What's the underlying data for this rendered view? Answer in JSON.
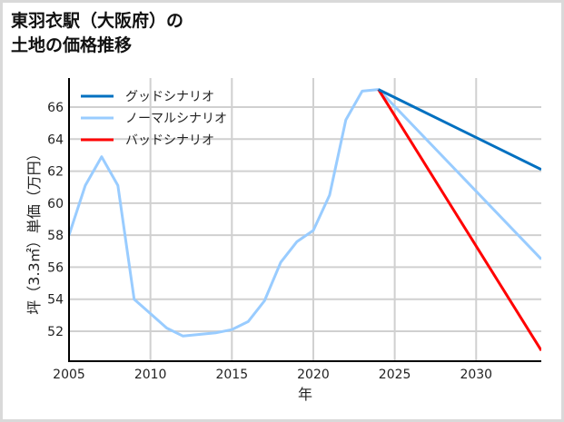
{
  "title": {
    "line1": "東羽衣駅（大阪府）の",
    "line2": "土地の価格推移"
  },
  "colors": {
    "good": "#0070c0",
    "normal": "#99ccff",
    "bad": "#ff0000",
    "grid": "#d0d0d0",
    "axis": "#000000"
  },
  "chart_data": {
    "type": "line",
    "title": "東羽衣駅（大阪府）の土地の価格推移",
    "xlabel": "年",
    "ylabel": "坪（3.3㎡）単価（万円）",
    "xlim": [
      2005,
      2034
    ],
    "ylim": [
      50.2,
      68.0
    ],
    "x_ticks": [
      2005,
      2010,
      2015,
      2020,
      2025,
      2030
    ],
    "y_ticks": [
      52,
      54,
      56,
      58,
      60,
      62,
      64,
      66
    ],
    "grid": true,
    "legend_position": "upper left",
    "series": [
      {
        "name": "グッドシナリオ",
        "color": "#0070c0",
        "x": [
          2024,
          2034
        ],
        "values": [
          67.1,
          62.1
        ]
      },
      {
        "name": "ノーマルシナリオ",
        "color": "#99ccff",
        "x": [
          2005,
          2006,
          2007,
          2008,
          2009,
          2010,
          2011,
          2012,
          2013,
          2014,
          2015,
          2016,
          2017,
          2018,
          2019,
          2020,
          2021,
          2022,
          2023,
          2024,
          2034
        ],
        "values": [
          58.0,
          61.1,
          62.9,
          61.1,
          54.0,
          53.1,
          52.2,
          51.7,
          51.8,
          51.9,
          52.1,
          52.6,
          53.9,
          56.3,
          57.6,
          58.3,
          60.5,
          65.2,
          67.0,
          67.1,
          56.5
        ]
      },
      {
        "name": "バッドシナリオ",
        "color": "#ff0000",
        "x": [
          2024,
          2034
        ],
        "values": [
          67.1,
          50.8
        ]
      }
    ]
  }
}
